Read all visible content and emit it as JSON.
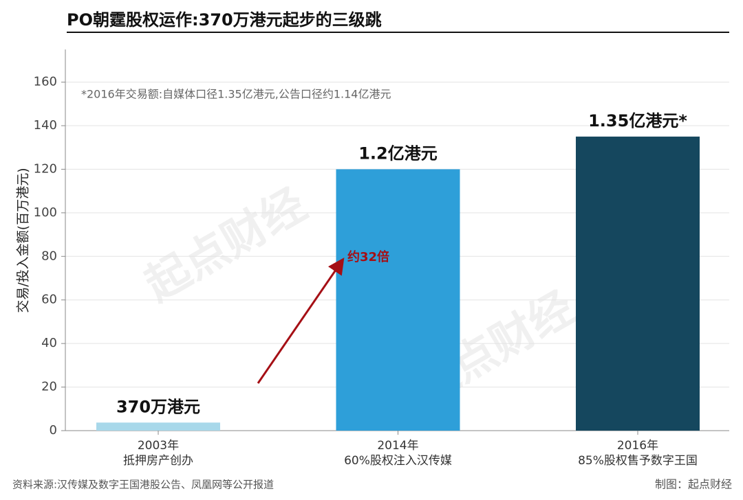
{
  "chart_data": {
    "type": "bar",
    "title": "PO朝霆股权运作:370万港元起步的三级跳",
    "y_label": "交易/投入金额(百万港元)",
    "note": "*2016年交易额:自媒体口径1.35亿港元,公告口径约1.14亿港元",
    "categories": [
      "2003年\n抵押房产创办",
      "2014年\n60%股权注入汉传媒",
      "2016年\n85%股权售予数字王国"
    ],
    "values": [
      3.7,
      120,
      135
    ],
    "value_labels": [
      "370万港元",
      "1.2亿港元",
      "1.35亿港元*"
    ],
    "colors": [
      "#a8d8ea",
      "#2e9fd9",
      "#15475e"
    ],
    "ylim": [
      0,
      175
    ],
    "yticks": [
      0,
      20,
      40,
      60,
      80,
      100,
      120,
      140,
      160
    ],
    "grid": true,
    "annotation": {
      "text": "约32倍",
      "color": "#a50f15"
    },
    "source": "资料来源:汉传媒及数字王国港股公告、凤凰网等公开报道",
    "credit": "制图：起点财经",
    "watermark": "起点财经"
  }
}
